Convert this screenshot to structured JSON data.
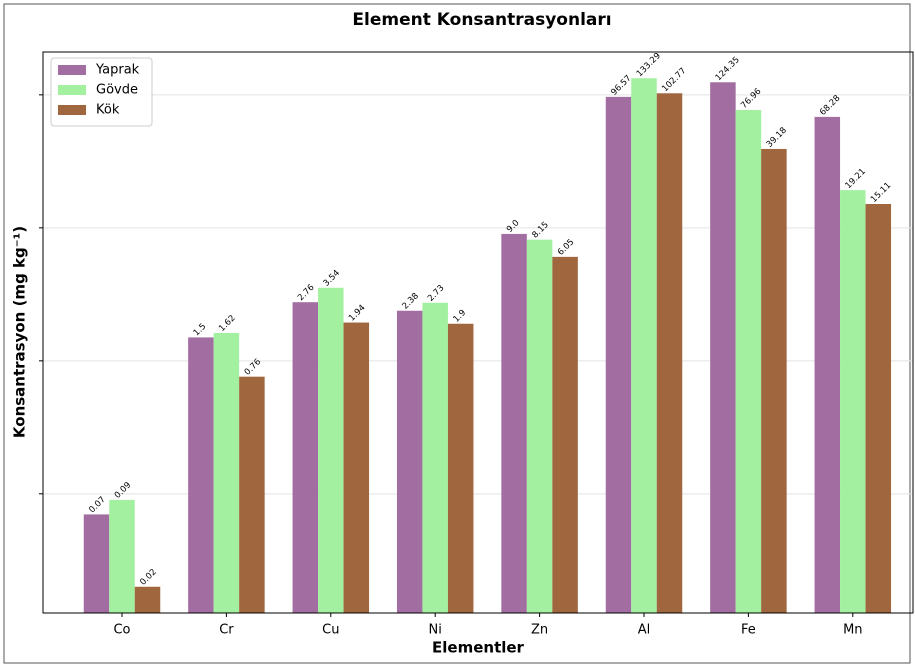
{
  "chart_data": {
    "type": "bar",
    "title": "Element Konsantrasyonları",
    "x_label": "Elementler",
    "y_label": "Konsantrasyon (mg kg⁻¹)",
    "categories": [
      "Co",
      "Cr",
      "Cu",
      "Ni",
      "Zn",
      "Al",
      "Fe",
      "Mn"
    ],
    "series": [
      {
        "name": "Yaprak",
        "color": "#a26ea1",
        "values": [
          0.07,
          1.5,
          2.76,
          2.38,
          9.0,
          96.57,
          124.35,
          68.28
        ],
        "value_labels": [
          "0.07",
          "1.5",
          "2.76",
          "2.38",
          "9.0",
          "96.57",
          "124.35",
          "68.28"
        ]
      },
      {
        "name": "Gövde",
        "color": "#a3f0a0",
        "values": [
          0.09,
          1.62,
          3.54,
          2.73,
          8.15,
          133.29,
          76.96,
          19.21
        ]
      },
      {
        "name": "Kök",
        "color": "#a0673f",
        "values": [
          0.02,
          0.76,
          1.94,
          1.9,
          6.05,
          102.77,
          39.18,
          15.11
        ]
      }
    ],
    "log_scale": true,
    "ylim": [
      0.0127,
      210
    ],
    "yticks": [
      0.1,
      1,
      10,
      100
    ],
    "grid": true,
    "legend": "upper left"
  }
}
